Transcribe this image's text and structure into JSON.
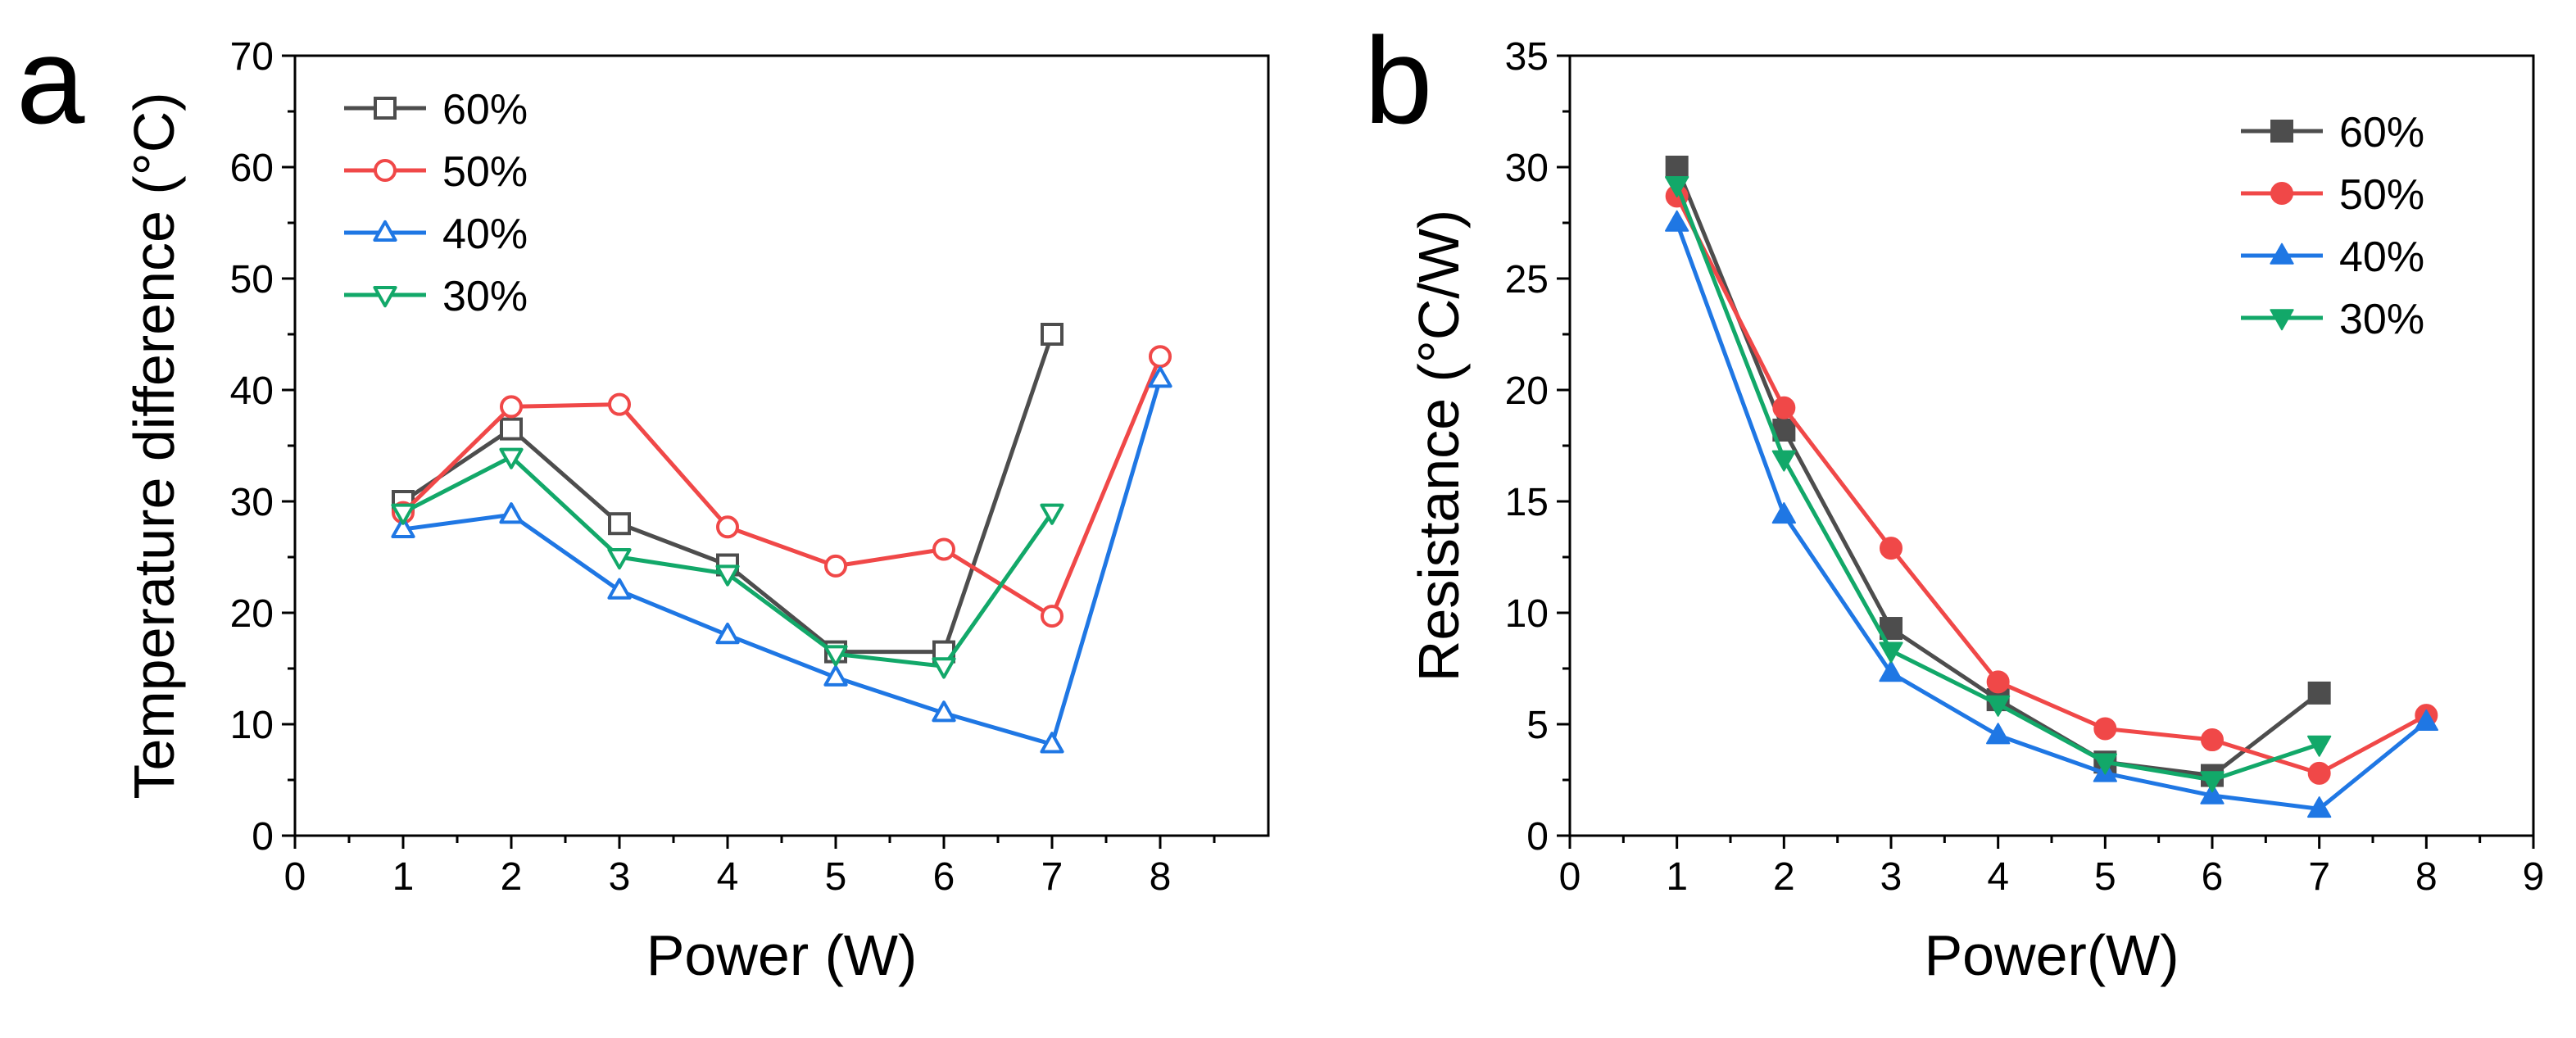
{
  "chart_data": [
    {
      "panel": "a",
      "type": "line",
      "marker_style": "open",
      "title": "",
      "xlabel": "Power (W)",
      "ylabel": "Temperature difference (°C)",
      "xlim": [
        0,
        9
      ],
      "ylim": [
        0,
        70
      ],
      "xticks": [
        "0",
        "1",
        "2",
        "3",
        "4",
        "5",
        "6",
        "7",
        "8"
      ],
      "yticks": [
        "0",
        "10",
        "20",
        "30",
        "40",
        "50",
        "60",
        "70"
      ],
      "legend_position": "top-left",
      "series": [
        {
          "name": "60%",
          "color": "#4d4d4d",
          "marker": "square",
          "x": [
            1,
            2,
            3,
            4,
            5,
            6,
            7
          ],
          "y": [
            30,
            36.5,
            28,
            24.3,
            16.5,
            16.5,
            45
          ]
        },
        {
          "name": "50%",
          "color": "#f04848",
          "marker": "circle",
          "x": [
            1,
            2,
            3,
            4,
            5,
            6,
            7,
            8
          ],
          "y": [
            29,
            38.5,
            38.7,
            27.7,
            24.2,
            25.7,
            19.7,
            43
          ]
        },
        {
          "name": "40%",
          "color": "#1f77e4",
          "marker": "triangle-up",
          "x": [
            1,
            2,
            3,
            4,
            5,
            6,
            7,
            8
          ],
          "y": [
            27.5,
            28.8,
            22,
            18,
            14.2,
            11,
            8.2,
            41
          ]
        },
        {
          "name": "30%",
          "color": "#12a869",
          "marker": "triangle-down",
          "x": [
            1,
            2,
            3,
            4,
            5,
            6,
            7
          ],
          "y": [
            29,
            34,
            25,
            23.5,
            16.3,
            15.2,
            29
          ]
        }
      ]
    },
    {
      "panel": "b",
      "type": "line",
      "marker_style": "filled",
      "title": "",
      "xlabel": "Power(W)",
      "ylabel": "Resistance (°C/W)",
      "xlim": [
        0,
        9
      ],
      "ylim": [
        0,
        35
      ],
      "xticks": [
        "0",
        "1",
        "2",
        "3",
        "4",
        "5",
        "6",
        "7",
        "8",
        "9"
      ],
      "yticks": [
        "0",
        "5",
        "10",
        "15",
        "20",
        "25",
        "30",
        "35"
      ],
      "legend_position": "top-right",
      "series": [
        {
          "name": "60%",
          "color": "#4d4d4d",
          "marker": "square",
          "x": [
            1,
            2,
            3,
            4,
            5,
            6,
            7
          ],
          "y": [
            30,
            18.2,
            9.3,
            6.1,
            3.3,
            2.7,
            6.4
          ]
        },
        {
          "name": "50%",
          "color": "#f04848",
          "marker": "circle",
          "x": [
            1,
            2,
            3,
            4,
            5,
            6,
            7,
            8
          ],
          "y": [
            28.7,
            19.2,
            12.9,
            6.9,
            4.8,
            4.3,
            2.8,
            5.4
          ]
        },
        {
          "name": "40%",
          "color": "#1f77e4",
          "marker": "triangle-up",
          "x": [
            1,
            2,
            3,
            4,
            5,
            6,
            7,
            8
          ],
          "y": [
            27.5,
            14.4,
            7.3,
            4.5,
            2.8,
            1.8,
            1.2,
            5.1
          ]
        },
        {
          "name": "30%",
          "color": "#12a869",
          "marker": "triangle-down",
          "x": [
            1,
            2,
            3,
            4,
            5,
            6,
            7
          ],
          "y": [
            29.2,
            16.9,
            8.3,
            5.9,
            3.3,
            2.5,
            4.1
          ]
        }
      ]
    }
  ]
}
